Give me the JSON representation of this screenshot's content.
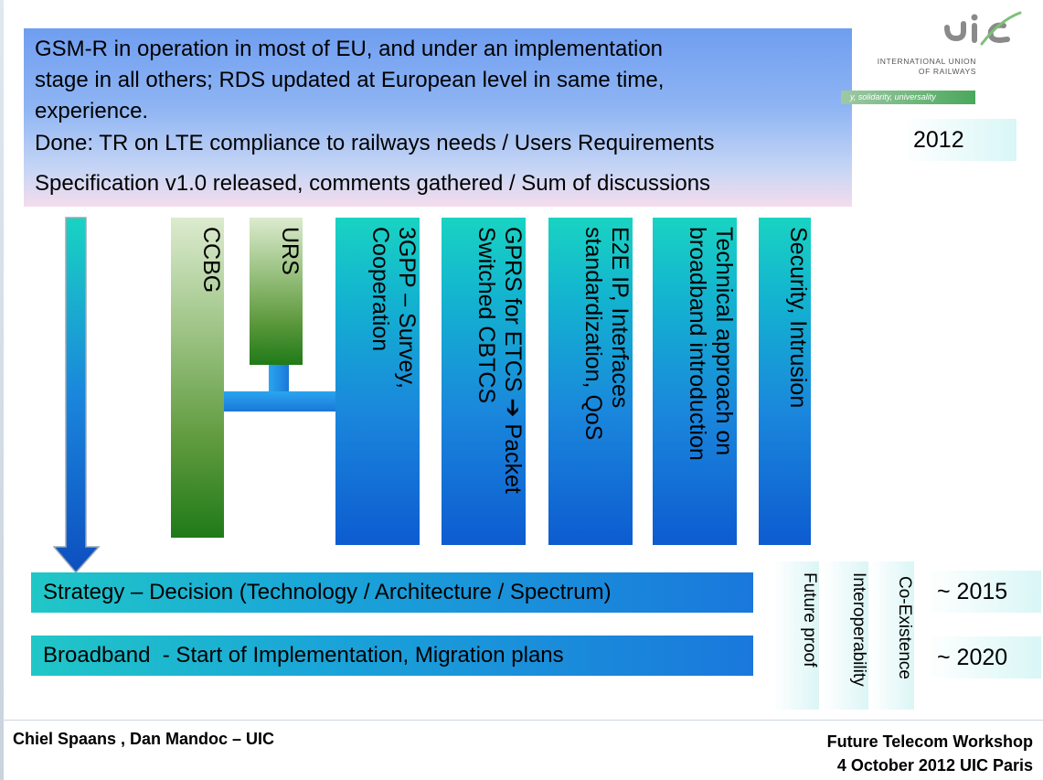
{
  "header": {
    "lines": [
      "GSM-R in operation in most of EU, and under an implementation",
      "stage in all others; RDS updated at European level in same time,",
      "experience.",
      "Done: TR on LTE compliance to railways needs / Users Requirements",
      "Specification v1.0 released, comments gathered / Sum of discussions"
    ]
  },
  "logo": {
    "mark": "uic",
    "name_line1": "INTERNATIONAL UNION",
    "name_line2": "OF RAILWAYS",
    "tagline": "y, solidarity, universality"
  },
  "years": {
    "y2012": "2012",
    "y2015": "~ 2015",
    "y2020": "~ 2020"
  },
  "columns": {
    "ccbg": "CCBG",
    "urs": "URS",
    "threegpp_1": "3GPP – Survey,",
    "threegpp_2": "Cooperation",
    "gprs_1": "GPRS for ETCS ➔ Packet",
    "gprs_2": "Switched CBTCS",
    "e2e_1": "E2E IP, Interfaces",
    "e2e_2": "standardization, QoS",
    "tech_1": "Technical approach on",
    "tech_2": "broadband introduction",
    "security": "Security, Intrusion"
  },
  "bars": {
    "strategy": "Strategy – Decision (Technology / Architecture / Spectrum)",
    "broadband": "Broadband  - Start of Implementation, Migration plans"
  },
  "side_labels": {
    "future": "Future proof",
    "interop": "Interoperability",
    "coex": "Co-Existence"
  },
  "footer": {
    "authors": "Chiel Spaans , Dan Mandoc – UIC",
    "event": "Future Telecom Workshop",
    "date": "4 October  2012 UIC Paris"
  },
  "colors": {
    "accent_blue": "#1a86dc",
    "accent_green": "#1f7a18",
    "uic_grey": "#7a7a7a",
    "uic_green": "#4aa85c"
  }
}
